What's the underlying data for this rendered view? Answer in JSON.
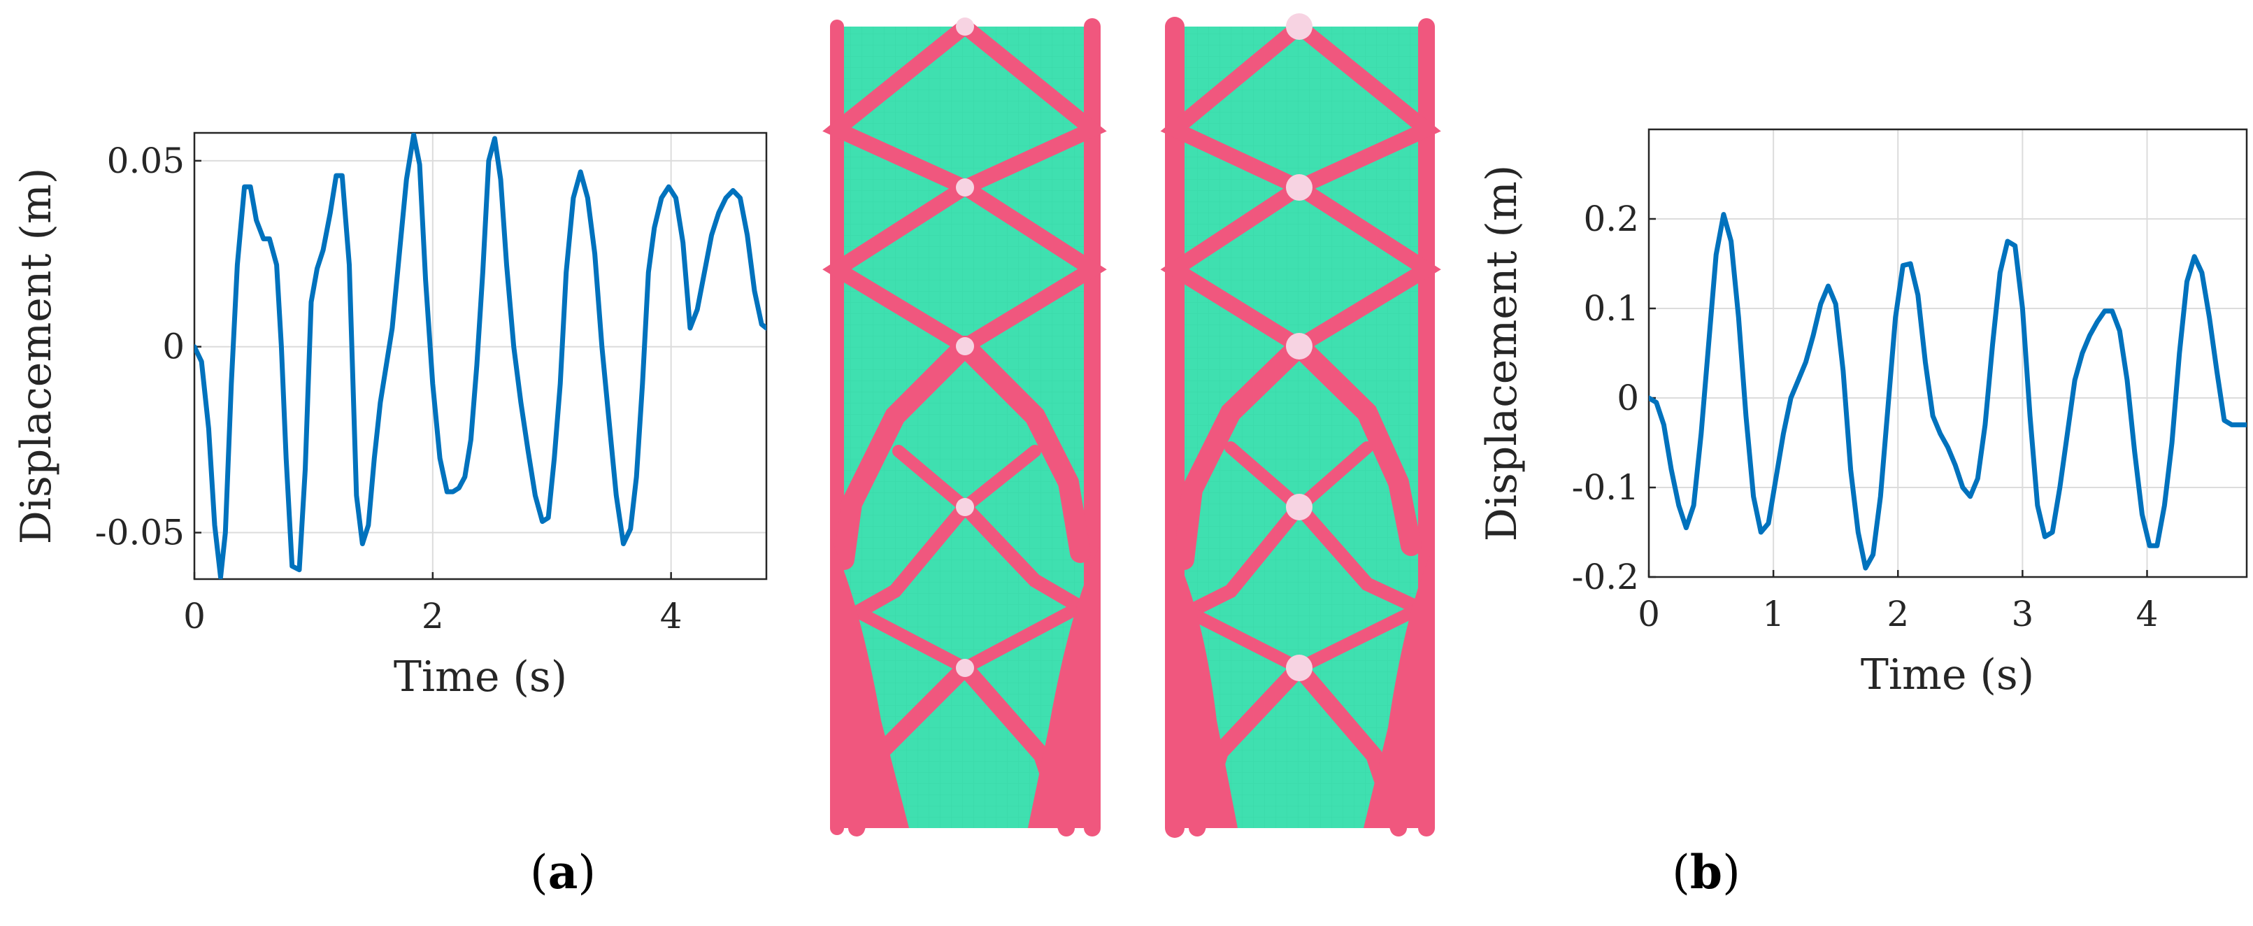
{
  "colors": {
    "line": "#0072BD",
    "axis": "#262626",
    "grid": "#dcdcdc",
    "solid": "#f0577e",
    "void": "#3fe0b0",
    "mass": "#f7d3e2"
  },
  "figure": {
    "label_a": "(a)",
    "label_b": "(b)",
    "label_a_bold": "a",
    "label_b_bold": "b"
  },
  "topology": {
    "description_icons": [
      "truss-left",
      "truss-right"
    ]
  },
  "chart_data": [
    {
      "type": "line",
      "panel": "a",
      "xlabel": "Time (s)",
      "ylabel": "Displacement (m)",
      "xlim": [
        0,
        4.8
      ],
      "ylim": [
        -0.0625,
        0.0575
      ],
      "xticks": [
        0,
        2,
        4
      ],
      "xtick_labels": [
        "0",
        "2",
        "4"
      ],
      "yticks": [
        -0.05,
        0,
        0.05
      ],
      "ytick_labels": [
        "-0.05",
        "0",
        "0.05"
      ],
      "grid": true,
      "series": [
        {
          "x": [
            0,
            0.06,
            0.12,
            0.17,
            0.22,
            0.26,
            0.31,
            0.36,
            0.42,
            0.47,
            0.52,
            0.58,
            0.63,
            0.69,
            0.73,
            0.77,
            0.82,
            0.88,
            0.93,
            0.98,
            1.03,
            1.08,
            1.14,
            1.19,
            1.24,
            1.3,
            1.36,
            1.41,
            1.46,
            1.51,
            1.56,
            1.61,
            1.66,
            1.72,
            1.78,
            1.84,
            1.89,
            1.94,
            2.0,
            2.06,
            2.12,
            2.17,
            2.22,
            2.27,
            2.32,
            2.37,
            2.42,
            2.47,
            2.52,
            2.57,
            2.62,
            2.68,
            2.74,
            2.8,
            2.86,
            2.92,
            2.97,
            3.02,
            3.07,
            3.12,
            3.18,
            3.24,
            3.3,
            3.36,
            3.42,
            3.48,
            3.54,
            3.6,
            3.66,
            3.71,
            3.76,
            3.81,
            3.86,
            3.92,
            3.98,
            4.04,
            4.1,
            4.16,
            4.22,
            4.28,
            4.34,
            4.4,
            4.46,
            4.52,
            4.58,
            4.64,
            4.7,
            4.76,
            4.8
          ],
          "y": [
            0.0,
            -0.004,
            -0.022,
            -0.048,
            -0.062,
            -0.05,
            -0.01,
            0.022,
            0.043,
            0.043,
            0.034,
            0.029,
            0.029,
            0.022,
            0.0,
            -0.03,
            -0.059,
            -0.06,
            -0.033,
            0.012,
            0.021,
            0.026,
            0.036,
            0.046,
            0.046,
            0.022,
            -0.04,
            -0.053,
            -0.048,
            -0.03,
            -0.015,
            -0.005,
            0.005,
            0.025,
            0.045,
            0.057,
            0.049,
            0.018,
            -0.01,
            -0.03,
            -0.039,
            -0.039,
            -0.038,
            -0.035,
            -0.025,
            -0.005,
            0.02,
            0.05,
            0.056,
            0.045,
            0.022,
            0.0,
            -0.015,
            -0.028,
            -0.04,
            -0.047,
            -0.046,
            -0.03,
            -0.01,
            0.02,
            0.04,
            0.047,
            0.04,
            0.025,
            0.0,
            -0.02,
            -0.04,
            -0.053,
            -0.049,
            -0.035,
            -0.01,
            0.02,
            0.032,
            0.04,
            0.043,
            0.04,
            0.028,
            0.005,
            0.01,
            0.02,
            0.03,
            0.036,
            0.04,
            0.042,
            0.04,
            0.03,
            0.015,
            0.006,
            0.005
          ]
        }
      ]
    },
    {
      "type": "line",
      "panel": "b",
      "xlabel": "Time (s)",
      "ylabel": "Displacement (m)",
      "xlim": [
        0,
        4.8
      ],
      "ylim": [
        -0.2,
        0.3
      ],
      "xticks": [
        0,
        1,
        2,
        3,
        4
      ],
      "xtick_labels": [
        "0",
        "1",
        "2",
        "3",
        "4"
      ],
      "yticks": [
        -0.2,
        -0.1,
        0,
        0.1,
        0.2
      ],
      "ytick_labels": [
        "-0.2",
        "-0.1",
        "0",
        "0.1",
        "0.2"
      ],
      "grid": true,
      "series": [
        {
          "x": [
            0,
            0.06,
            0.12,
            0.18,
            0.24,
            0.3,
            0.36,
            0.42,
            0.48,
            0.54,
            0.6,
            0.66,
            0.72,
            0.78,
            0.84,
            0.9,
            0.96,
            1.02,
            1.08,
            1.14,
            1.2,
            1.26,
            1.32,
            1.38,
            1.44,
            1.5,
            1.56,
            1.62,
            1.68,
            1.74,
            1.8,
            1.86,
            1.92,
            1.98,
            2.04,
            2.1,
            2.16,
            2.22,
            2.28,
            2.34,
            2.4,
            2.46,
            2.52,
            2.58,
            2.64,
            2.7,
            2.76,
            2.82,
            2.88,
            2.94,
            3.0,
            3.06,
            3.12,
            3.18,
            3.24,
            3.3,
            3.36,
            3.42,
            3.48,
            3.54,
            3.6,
            3.66,
            3.72,
            3.78,
            3.84,
            3.9,
            3.96,
            4.02,
            4.08,
            4.14,
            4.2,
            4.26,
            4.32,
            4.38,
            4.44,
            4.5,
            4.56,
            4.62,
            4.68,
            4.74,
            4.8
          ],
          "y": [
            0.0,
            -0.005,
            -0.03,
            -0.08,
            -0.12,
            -0.145,
            -0.12,
            -0.04,
            0.06,
            0.16,
            0.205,
            0.175,
            0.09,
            -0.02,
            -0.11,
            -0.15,
            -0.14,
            -0.09,
            -0.04,
            0.0,
            0.02,
            0.04,
            0.07,
            0.105,
            0.125,
            0.105,
            0.03,
            -0.08,
            -0.15,
            -0.19,
            -0.175,
            -0.11,
            -0.01,
            0.09,
            0.148,
            0.15,
            0.115,
            0.04,
            -0.02,
            -0.04,
            -0.055,
            -0.075,
            -0.1,
            -0.11,
            -0.09,
            -0.03,
            0.06,
            0.14,
            0.175,
            0.17,
            0.1,
            -0.02,
            -0.12,
            -0.155,
            -0.15,
            -0.1,
            -0.04,
            0.02,
            0.05,
            0.07,
            0.085,
            0.097,
            0.097,
            0.075,
            0.02,
            -0.06,
            -0.13,
            -0.165,
            -0.165,
            -0.12,
            -0.05,
            0.05,
            0.13,
            0.158,
            0.14,
            0.09,
            0.03,
            -0.025,
            -0.03,
            -0.03,
            -0.03
          ]
        }
      ]
    }
  ]
}
